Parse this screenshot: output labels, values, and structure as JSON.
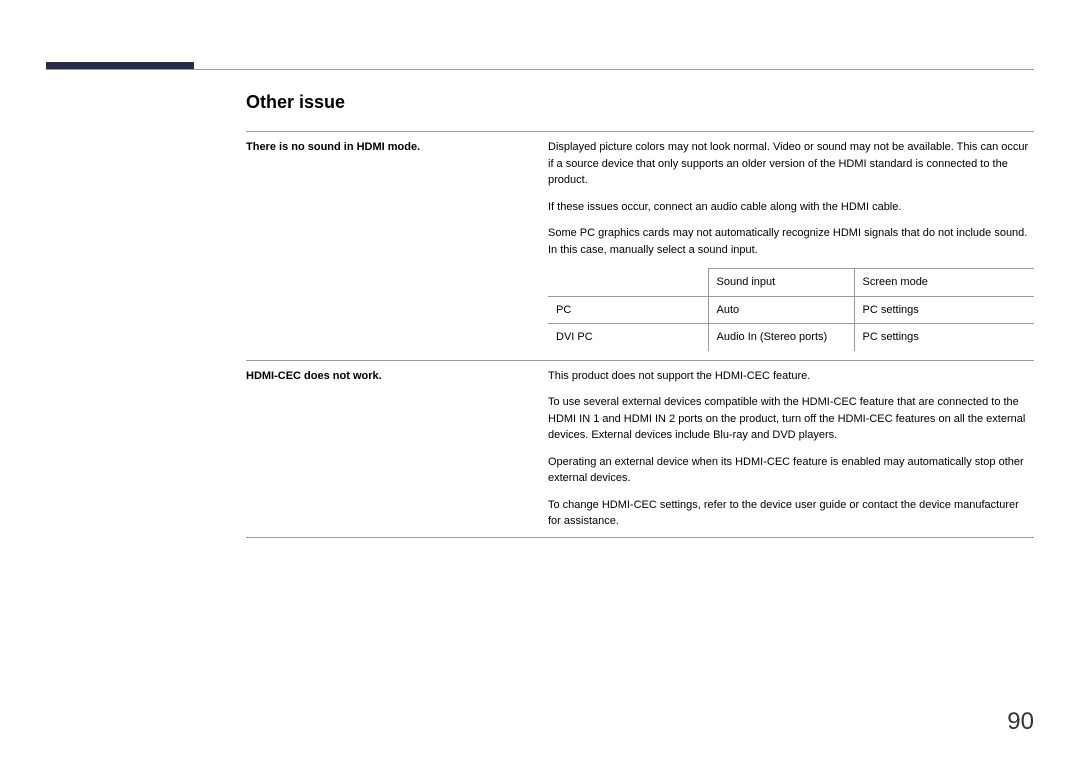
{
  "section_title": "Other issue",
  "issues": [
    {
      "label": "There is no sound in HDMI mode.",
      "paragraphs": [
        "Displayed picture colors may not look normal. Video or sound may not be available. This can occur if a source device that only supports an older version of the HDMI standard is connected to the product.",
        "If these issues occur, connect an audio cable along with the HDMI cable.",
        "Some PC graphics cards may not automatically recognize HDMI signals that do not include sound. In this case, manually select a sound input."
      ],
      "table": {
        "headers": [
          "",
          "Sound input",
          "Screen mode"
        ],
        "rows": [
          [
            "PC",
            "Auto",
            "PC settings"
          ],
          [
            "DVI PC",
            "Audio In (Stereo ports)",
            "PC settings"
          ]
        ]
      }
    },
    {
      "label": "HDMI-CEC does not work.",
      "paragraphs": [
        "This product does not support the HDMI-CEC feature.",
        "To use several external devices compatible with the HDMI-CEC feature that are connected to the HDMI IN 1 and HDMI IN 2 ports on the product, turn off the HDMI-CEC features on all the external devices. External devices include Blu-ray and DVD players.",
        "Operating an external device when its HDMI-CEC feature is enabled may automatically stop other external devices.",
        "To change HDMI-CEC settings, refer to the device user guide or contact the device manufacturer for assistance."
      ]
    }
  ],
  "page_number": "90",
  "colors": {
    "header_bar": "#2a2a4a",
    "rule": "#999999",
    "text": "#000000",
    "page_num": "#333333"
  }
}
